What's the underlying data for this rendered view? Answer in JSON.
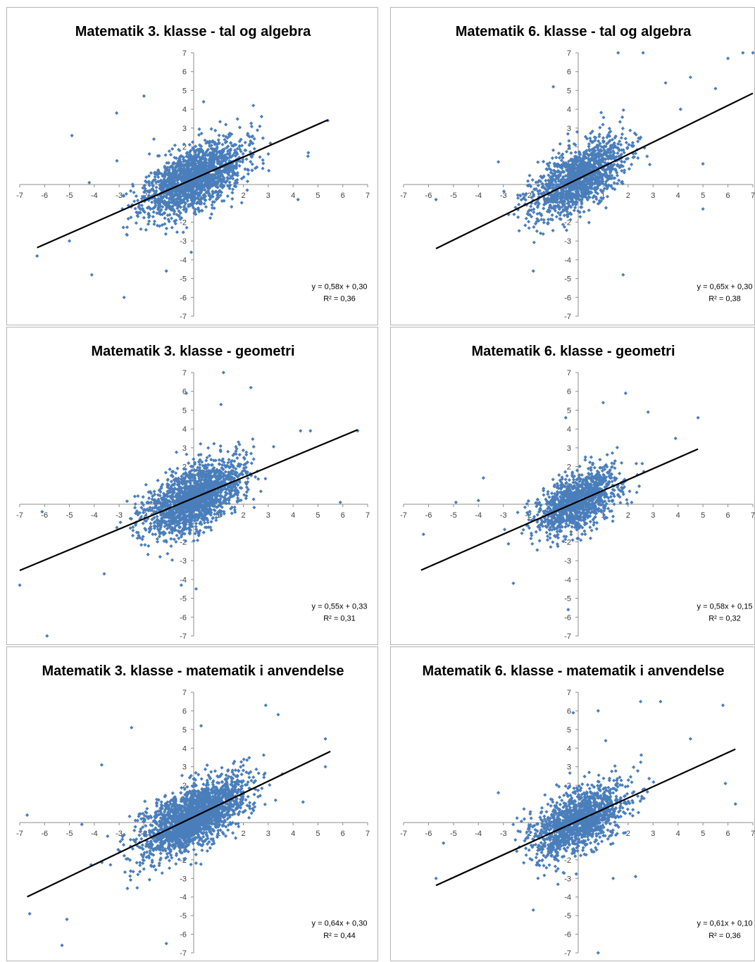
{
  "chart_data": [
    {
      "type": "scatter",
      "title": "Matematik 3. klasse - tal og algebra",
      "xlim": [
        -7,
        7
      ],
      "ylim": [
        -7,
        7
      ],
      "x_ticks": [
        -7,
        -6,
        -5,
        -4,
        -3,
        -2,
        -1,
        0,
        1,
        2,
        3,
        4,
        5,
        6,
        7
      ],
      "y_ticks": [
        -7,
        -6,
        -5,
        -4,
        -3,
        -2,
        -1,
        1,
        2,
        3,
        4,
        5,
        6,
        7
      ],
      "point_color": "#4a7ebb",
      "trendline": {
        "slope": 0.58,
        "intercept": 0.3,
        "x_range": [
          -6.3,
          5.4
        ],
        "color": "#000000"
      },
      "equation": "y = 0,58x + 0,30",
      "r2": "R² = 0,36",
      "cloud": {
        "n": 1800,
        "x_sd": 1.0,
        "r": 0.6,
        "seed": 11
      },
      "outliers": [
        [
          -6.3,
          -3.8
        ],
        [
          -4.9,
          2.6
        ],
        [
          -4.1,
          -4.8
        ],
        [
          -3.1,
          3.8
        ],
        [
          -2.0,
          4.7
        ],
        [
          -2.8,
          -6.0
        ],
        [
          -1.1,
          -4.6
        ],
        [
          0.4,
          4.4
        ],
        [
          2.4,
          4.2
        ],
        [
          4.2,
          -0.8
        ],
        [
          5.4,
          3.4
        ],
        [
          -5.0,
          -3.0
        ],
        [
          -4.2,
          0.1
        ],
        [
          -0.1,
          -3.6
        ],
        [
          4.6,
          1.5
        ]
      ]
    },
    {
      "type": "scatter",
      "title": "Matematik 6. klasse - tal og algebra",
      "xlim": [
        -7,
        7
      ],
      "ylim": [
        -7,
        7
      ],
      "x_ticks": [
        -7,
        -6,
        -5,
        -4,
        -3,
        -2,
        -1,
        0,
        1,
        2,
        3,
        4,
        5,
        6,
        7
      ],
      "y_ticks": [
        -7,
        -6,
        -5,
        -4,
        -3,
        -2,
        -1,
        1,
        2,
        3,
        4,
        5,
        6,
        7
      ],
      "point_color": "#4a7ebb",
      "trendline": {
        "slope": 0.65,
        "intercept": 0.3,
        "x_range": [
          -5.7,
          7.0
        ],
        "color": "#000000"
      },
      "equation": "y = 0,65x + 0,30",
      "r2": "R² = 0,38",
      "cloud": {
        "n": 1400,
        "x_sd": 0.95,
        "r": 0.62,
        "seed": 23
      },
      "outliers": [
        [
          1.6,
          7.0
        ],
        [
          2.6,
          7.0
        ],
        [
          6.6,
          7.0
        ],
        [
          7.0,
          7.0
        ],
        [
          5.5,
          5.1
        ],
        [
          6.0,
          6.7
        ],
        [
          3.5,
          5.4
        ],
        [
          4.5,
          5.7
        ],
        [
          5.0,
          1.1
        ],
        [
          1.8,
          -4.8
        ],
        [
          -1.8,
          -4.6
        ],
        [
          -5.7,
          -0.8
        ],
        [
          -3.2,
          1.2
        ],
        [
          5.0,
          -1.3
        ],
        [
          4.1,
          4.0
        ],
        [
          -1.0,
          5.2
        ]
      ]
    },
    {
      "type": "scatter",
      "title": "Matematik 3. klasse - geometri",
      "xlim": [
        -7,
        7
      ],
      "ylim": [
        -7,
        7
      ],
      "x_ticks": [
        -7,
        -6,
        -5,
        -4,
        -3,
        -2,
        -1,
        0,
        1,
        2,
        3,
        4,
        5,
        6,
        7
      ],
      "y_ticks": [
        -7,
        -6,
        -5,
        -4,
        -3,
        -2,
        -1,
        1,
        2,
        3,
        4,
        5,
        6,
        7
      ],
      "point_color": "#4a7ebb",
      "trendline": {
        "slope": 0.55,
        "intercept": 0.33,
        "x_range": [
          -7.0,
          6.6
        ],
        "color": "#000000"
      },
      "equation": "y = 0,55x + 0,33",
      "r2": "R² = 0,31",
      "cloud": {
        "n": 1800,
        "x_sd": 0.95,
        "r": 0.56,
        "seed": 37
      },
      "outliers": [
        [
          1.2,
          7.0
        ],
        [
          -0.3,
          5.9
        ],
        [
          1.1,
          5.3
        ],
        [
          2.3,
          6.2
        ],
        [
          4.3,
          3.9
        ],
        [
          6.6,
          3.9
        ],
        [
          -7.0,
          -4.3
        ],
        [
          -5.9,
          -7.0
        ],
        [
          -0.5,
          -4.3
        ],
        [
          -3.6,
          -3.7
        ],
        [
          5.9,
          0.1
        ],
        [
          -6.1,
          -0.4
        ],
        [
          0.1,
          -4.5
        ],
        [
          4.7,
          3.9
        ]
      ]
    },
    {
      "type": "scatter",
      "title": "Matematik 6. klasse - geometri",
      "xlim": [
        -7,
        7
      ],
      "ylim": [
        -7,
        7
      ],
      "x_ticks": [
        -7,
        -6,
        -5,
        -4,
        -3,
        -2,
        -1,
        0,
        1,
        2,
        3,
        4,
        5,
        6,
        7
      ],
      "y_ticks": [
        -7,
        -6,
        -5,
        -4,
        -3,
        -2,
        -1,
        1,
        2,
        3,
        4,
        5,
        6,
        7
      ],
      "point_color": "#4a7ebb",
      "trendline": {
        "slope": 0.58,
        "intercept": 0.15,
        "x_range": [
          -6.3,
          4.8
        ],
        "color": "#000000"
      },
      "equation": "y = 0,58x + 0,15",
      "r2": "R² = 0,32",
      "cloud": {
        "n": 1200,
        "x_sd": 0.85,
        "r": 0.57,
        "seed": 53
      },
      "outliers": [
        [
          -6.2,
          -1.6
        ],
        [
          -4.9,
          0.1
        ],
        [
          -3.8,
          1.4
        ],
        [
          -2.6,
          -4.2
        ],
        [
          -0.4,
          -5.6
        ],
        [
          1.0,
          5.4
        ],
        [
          1.9,
          5.9
        ],
        [
          2.8,
          4.9
        ],
        [
          4.8,
          4.6
        ],
        [
          3.9,
          3.5
        ],
        [
          -0.5,
          4.6
        ],
        [
          -4.0,
          0.2
        ]
      ]
    },
    {
      "type": "scatter",
      "title": "Matematik 3. klasse - matematik i anvendelse",
      "xlim": [
        -7,
        7
      ],
      "ylim": [
        -7,
        7
      ],
      "x_ticks": [
        -7,
        -6,
        -5,
        -4,
        -3,
        -2,
        -1,
        0,
        1,
        2,
        3,
        4,
        5,
        6,
        7
      ],
      "y_ticks": [
        -7,
        -6,
        -5,
        -4,
        -3,
        -2,
        -1,
        1,
        2,
        3,
        4,
        5,
        6,
        7
      ],
      "point_color": "#4a7ebb",
      "trendline": {
        "slope": 0.64,
        "intercept": 0.3,
        "x_range": [
          -6.7,
          5.5
        ],
        "color": "#000000"
      },
      "equation": "y = 0,64x + 0,30",
      "r2": "R² = 0,44",
      "cloud": {
        "n": 2200,
        "x_sd": 1.05,
        "r": 0.66,
        "seed": 71
      },
      "outliers": [
        [
          -6.7,
          0.4
        ],
        [
          -6.6,
          -4.9
        ],
        [
          -5.1,
          -5.2
        ],
        [
          -5.3,
          -6.6
        ],
        [
          -1.1,
          -6.5
        ],
        [
          0.3,
          5.2
        ],
        [
          2.9,
          6.3
        ],
        [
          3.4,
          5.8
        ],
        [
          5.3,
          4.5
        ],
        [
          5.3,
          3.0
        ],
        [
          -2.5,
          5.1
        ],
        [
          -3.7,
          3.1
        ],
        [
          4.4,
          1.1
        ],
        [
          -4.5,
          -0.1
        ]
      ]
    },
    {
      "type": "scatter",
      "title": "Matematik 6. klasse - matematik i anvendelse",
      "xlim": [
        -7,
        7
      ],
      "ylim": [
        -7,
        7
      ],
      "x_ticks": [
        -7,
        -6,
        -5,
        -4,
        -3,
        -2,
        -1,
        0,
        1,
        2,
        3,
        4,
        5,
        6,
        7
      ],
      "y_ticks": [
        -7,
        -6,
        -5,
        -4,
        -3,
        -2,
        -1,
        1,
        2,
        3,
        4,
        5,
        6,
        7
      ],
      "point_color": "#4a7ebb",
      "trendline": {
        "slope": 0.61,
        "intercept": 0.1,
        "x_range": [
          -5.7,
          6.3
        ],
        "color": "#000000"
      },
      "equation": "y = 0,61x + 0,10",
      "r2": "R² = 0,36",
      "cloud": {
        "n": 1400,
        "x_sd": 0.95,
        "r": 0.6,
        "seed": 89
      },
      "outliers": [
        [
          -5.7,
          -3.0
        ],
        [
          -5.4,
          -1.1
        ],
        [
          -3.2,
          1.6
        ],
        [
          -1.8,
          -4.7
        ],
        [
          0.8,
          -7.0
        ],
        [
          0.8,
          6.0
        ],
        [
          1.1,
          4.4
        ],
        [
          2.5,
          6.5
        ],
        [
          3.3,
          6.5
        ],
        [
          5.8,
          6.3
        ],
        [
          6.3,
          1.0
        ],
        [
          5.9,
          2.1
        ],
        [
          -0.2,
          5.9
        ],
        [
          4.5,
          4.5
        ],
        [
          1.4,
          -3.0
        ],
        [
          2.3,
          -2.9
        ]
      ]
    }
  ]
}
